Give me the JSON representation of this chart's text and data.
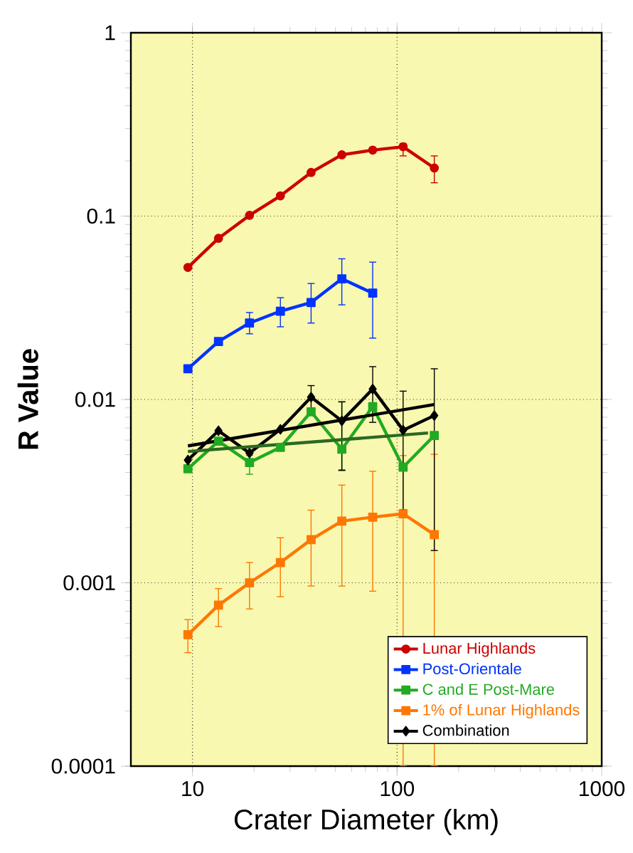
{
  "chart_data": {
    "type": "line",
    "xlabel": "Crater Diameter (km)",
    "ylabel": "R Value",
    "log": "xy",
    "grid": true,
    "legend": "bottom right",
    "xlim": [
      5,
      1000
    ],
    "ylim": [
      0.0001,
      1
    ],
    "xticks": [
      10,
      100,
      1000
    ],
    "yticks": [
      0.0001,
      0.001,
      0.01,
      0.1,
      1
    ],
    "x": [
      9.5,
      13.4,
      19,
      26.9,
      38,
      53.7,
      76,
      107,
      152
    ],
    "series": [
      {
        "name": "Lunar Highlands",
        "color": "#cc0000",
        "marker": "circle",
        "values": [
          0.0525,
          0.0757,
          0.101,
          0.129,
          0.173,
          0.216,
          0.229,
          0.239,
          0.183
        ],
        "errors": [
          null,
          null,
          null,
          null,
          null,
          null,
          null,
          [
            0.213,
            0.249
          ],
          [
            0.152,
            0.213
          ]
        ]
      },
      {
        "name": "Post-Orientale",
        "color": "#0033ff",
        "marker": "square",
        "x": [
          9.5,
          13.4,
          19,
          26.9,
          38,
          53.7,
          76
        ],
        "values": [
          0.0147,
          0.0207,
          0.0261,
          0.0303,
          0.0338,
          0.0455,
          0.038
        ],
        "errors": [
          null,
          null,
          [
            0.0228,
            0.0298
          ],
          [
            0.0249,
            0.0359
          ],
          [
            0.0261,
            0.0429
          ],
          [
            0.0328,
            0.0585
          ],
          [
            0.0216,
            0.0561
          ]
        ]
      },
      {
        "name": "C and E Post-Mare",
        "color": "#22aa22",
        "marker": "square",
        "values": [
          0.00419,
          0.00592,
          0.00453,
          0.00548,
          0.00857,
          0.00535,
          0.00914,
          0.00427,
          0.00636
        ],
        "errors": [
          null,
          null,
          [
            0.00391,
            0.00495
          ],
          null,
          null,
          [
            0.00414,
            0.00972
          ],
          null,
          null,
          null
        ]
      },
      {
        "name": "1% of Lunar Highlands",
        "color": "#ff7700",
        "marker": "square",
        "values": [
          0.000521,
          0.000755,
          0.001,
          0.00129,
          0.00172,
          0.00217,
          0.00228,
          0.00238,
          0.00183
        ],
        "errors": [
          [
            0.000416,
            0.00063
          ],
          [
            0.000577,
            0.00093
          ],
          [
            0.00072,
            0.00129
          ],
          [
            0.00084,
            0.00176
          ],
          [
            0.00096,
            0.00249
          ],
          [
            0.00096,
            0.00341
          ],
          [
            0.0009,
            0.00406
          ],
          [
            0.0001,
            0.00494
          ],
          [
            0.0001,
            0.00502
          ]
        ]
      },
      {
        "name": "Combination",
        "color": "#000000",
        "marker": "diamond",
        "values": [
          0.00467,
          0.00675,
          0.0051,
          0.00687,
          0.0103,
          0.00764,
          0.0114,
          0.0068,
          0.00817
        ],
        "errors": [
          null,
          null,
          null,
          null,
          [
            0.00898,
            0.0119
          ],
          [
            0.0041,
            0.0097
          ],
          [
            0.0075,
            0.0151
          ],
          [
            0.0025,
            0.0111
          ],
          [
            0.0015,
            0.0147
          ]
        ]
      },
      {
        "type": "line",
        "color": "#000000",
        "marker": "none",
        "x": [
          9.5,
          152
        ],
        "values": [
          0.00558,
          0.00938
        ]
      },
      {
        "type": "line",
        "color": "#2a6a20",
        "marker": "none",
        "x": [
          9.5,
          141.6
        ],
        "values": [
          0.0052,
          0.00656
        ]
      }
    ]
  }
}
